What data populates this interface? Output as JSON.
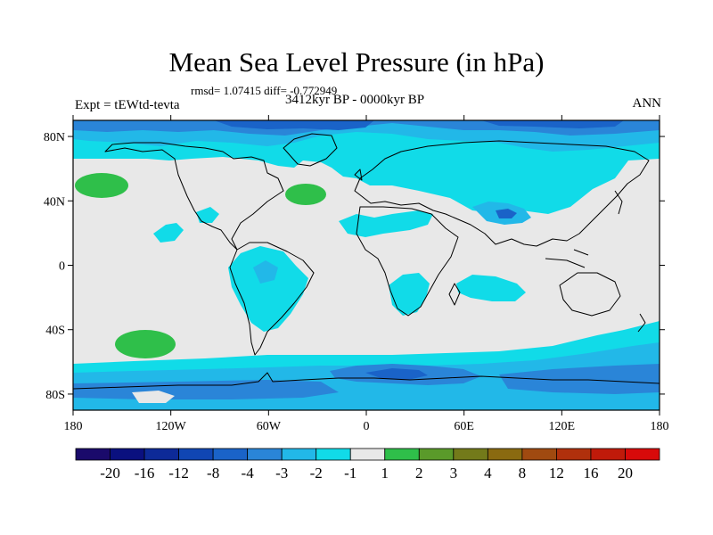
{
  "title": "Mean Sea Level Pressure (in hPa)",
  "stats_line": "rmsd= 1.07415  diff= -0.772949",
  "experiment_label": "Expt = tEWtd-tevta",
  "period_label": "3412kyr BP - 0000kyr BP",
  "season_label": "ANN",
  "map": {
    "projection": "cylindrical-equidistant",
    "lon_range": [
      -180,
      180
    ],
    "lat_range": [
      -90,
      90
    ],
    "background_color": "#e8e8e8",
    "lat_ticks": [
      {
        "value": 80,
        "label": "80N"
      },
      {
        "value": 40,
        "label": "40N"
      },
      {
        "value": 0,
        "label": "0"
      },
      {
        "value": -40,
        "label": "40S"
      },
      {
        "value": -80,
        "label": "80S"
      }
    ],
    "lon_ticks": [
      {
        "value": -180,
        "label": "180"
      },
      {
        "value": -120,
        "label": "120W"
      },
      {
        "value": -60,
        "label": "60W"
      },
      {
        "value": 0,
        "label": "0"
      },
      {
        "value": 60,
        "label": "60E"
      },
      {
        "value": 120,
        "label": "120E"
      },
      {
        "value": 180,
        "label": "180"
      }
    ]
  },
  "colorbar": {
    "colors": [
      "#1a0a6b",
      "#0a107f",
      "#0d2a98",
      "#1046b3",
      "#1a63c8",
      "#2a85d8",
      "#22b8e8",
      "#11dbe8",
      "#e8e8e8",
      "#2fbf4a",
      "#5a9a2a",
      "#737a1a",
      "#8a6a10",
      "#a04a10",
      "#b0300c",
      "#c01a0a",
      "#d80a0a"
    ],
    "labels": [
      "-20",
      "-16",
      "-12",
      "-8",
      "-4",
      "-3",
      "-2",
      "-1",
      "1",
      "2",
      "3",
      "4",
      "8",
      "12",
      "16",
      "20"
    ]
  }
}
